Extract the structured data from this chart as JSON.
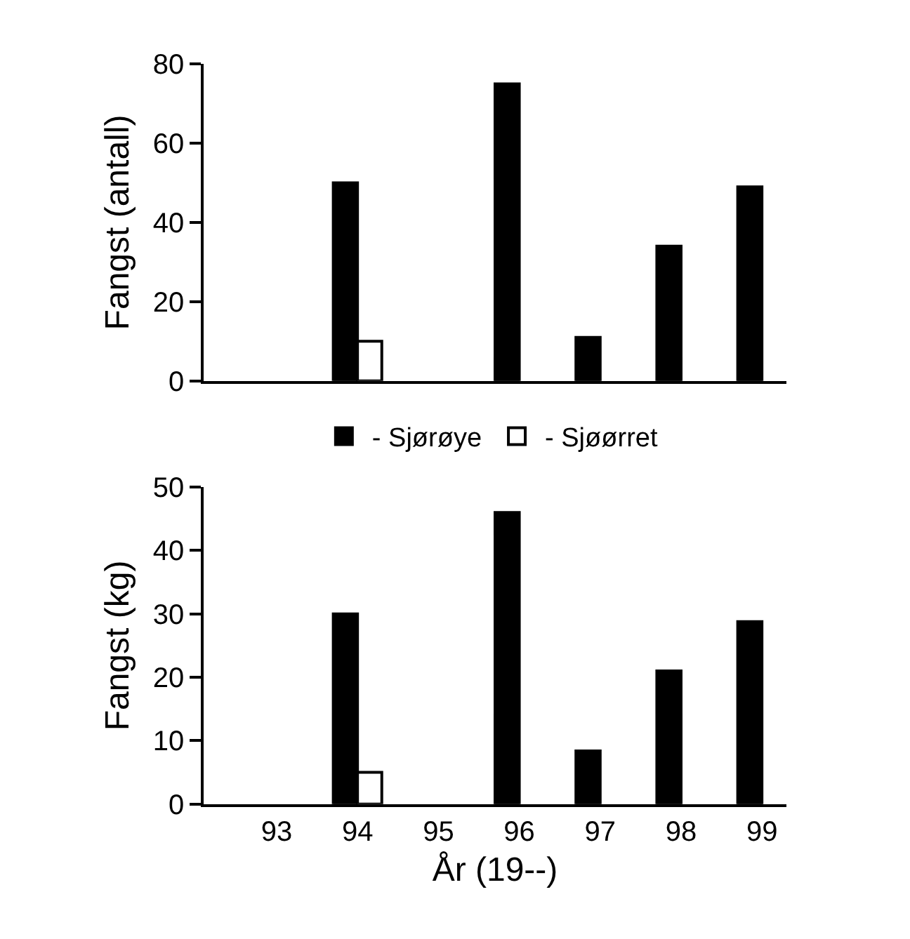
{
  "chart_data": [
    {
      "type": "bar",
      "ylabel": "Fangst (antall)",
      "categories": [
        "93",
        "94",
        "95",
        "96",
        "97",
        "98",
        "99"
      ],
      "tick_labels": "y",
      "ylim": [
        0,
        80
      ],
      "yticks": [
        0,
        20,
        40,
        60,
        80
      ],
      "legend": "bottom",
      "series": [
        {
          "name": "- Sjørøye",
          "color": "#000000",
          "values": [
            null,
            50,
            null,
            75,
            11,
            34,
            49
          ]
        },
        {
          "name": "- Sjøørret",
          "color": "#ffffff",
          "values": [
            null,
            10,
            null,
            null,
            null,
            null,
            null
          ]
        }
      ]
    },
    {
      "type": "bar",
      "xlabel": "År (19--)",
      "ylabel": "Fangst (kg)",
      "categories": [
        "93",
        "94",
        "95",
        "96",
        "97",
        "98",
        "99"
      ],
      "ylim": [
        0,
        50
      ],
      "yticks": [
        0,
        10,
        20,
        30,
        40,
        50
      ],
      "legend": false,
      "series": [
        {
          "color": "#000000",
          "values": [
            null,
            30,
            null,
            46,
            8.4,
            21,
            28.8
          ]
        },
        {
          "color": "#ffffff",
          "values": [
            null,
            5,
            null,
            null,
            null,
            null,
            null
          ]
        }
      ]
    }
  ]
}
